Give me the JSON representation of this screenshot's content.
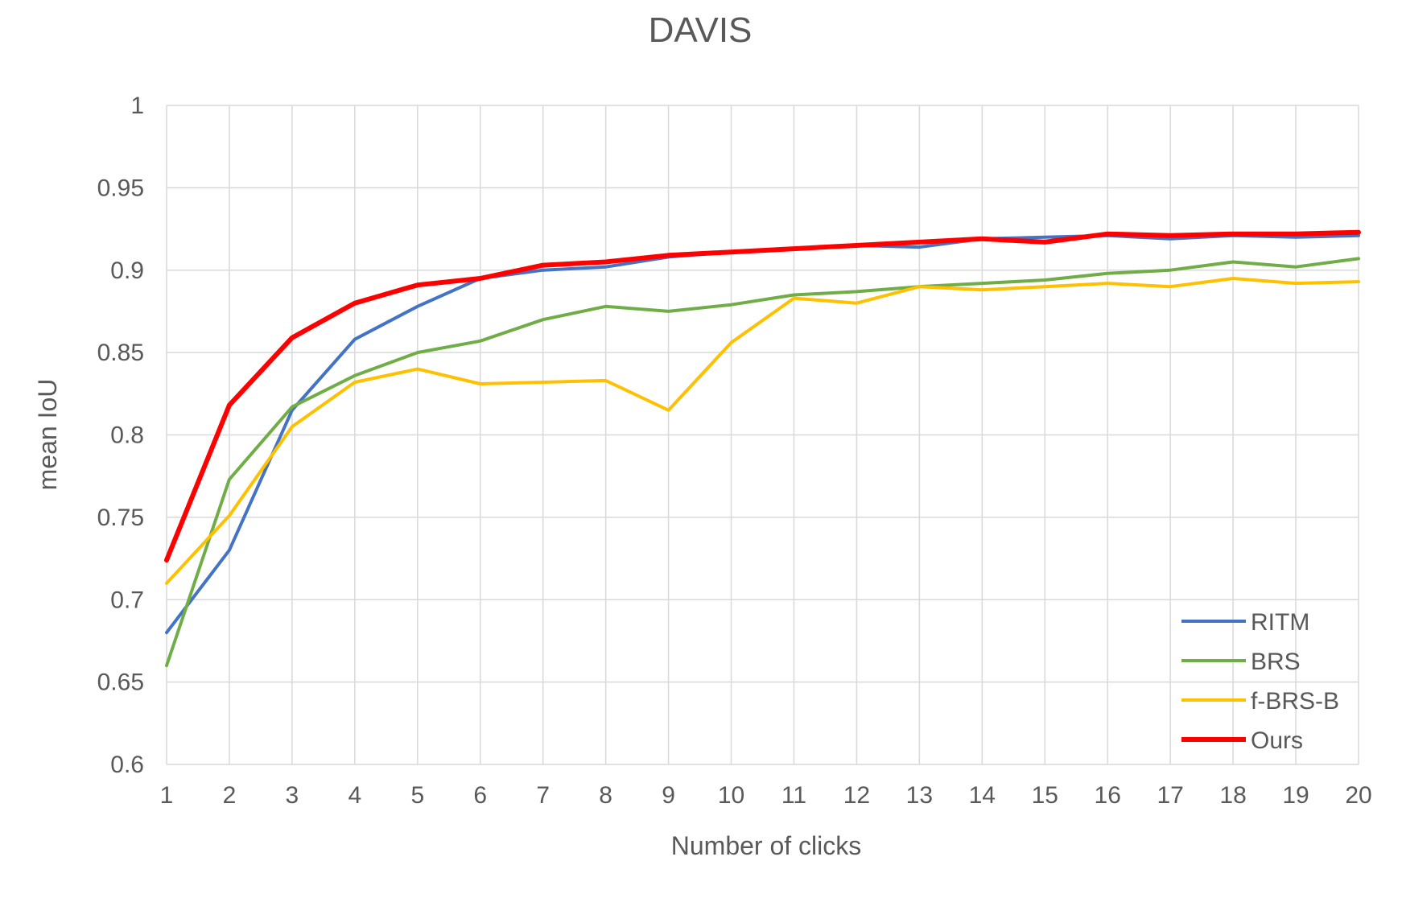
{
  "chart_data": {
    "type": "line",
    "title": "DAVIS",
    "xlabel": "Number of clicks",
    "ylabel": "mean IoU",
    "x": [
      1,
      2,
      3,
      4,
      5,
      6,
      7,
      8,
      9,
      10,
      11,
      12,
      13,
      14,
      15,
      16,
      17,
      18,
      19,
      20
    ],
    "ylim": [
      0.6,
      1
    ],
    "y_ticks": [
      0.6,
      0.65,
      0.7,
      0.75,
      0.8,
      0.85,
      0.9,
      0.95,
      1
    ],
    "y_tick_labels": [
      "0.6",
      "0.65",
      "0.7",
      "0.75",
      "0.8",
      "0.85",
      "0.9",
      "0.95",
      "1"
    ],
    "grid": true,
    "legend_position": "bottom-right",
    "series": [
      {
        "name": "RITM",
        "color": "#4472c4",
        "values": [
          0.68,
          0.73,
          0.815,
          0.858,
          0.878,
          0.895,
          0.9,
          0.902,
          0.908,
          0.911,
          0.913,
          0.915,
          0.914,
          0.919,
          0.92,
          0.921,
          0.919,
          0.921,
          0.92,
          0.921
        ]
      },
      {
        "name": "BRS",
        "color": "#70ad47",
        "values": [
          0.66,
          0.773,
          0.817,
          0.836,
          0.85,
          0.857,
          0.87,
          0.878,
          0.875,
          0.879,
          0.885,
          0.887,
          0.89,
          0.892,
          0.894,
          0.898,
          0.9,
          0.905,
          0.902,
          0.907
        ]
      },
      {
        "name": "f-BRS-B",
        "color": "#ffc000",
        "values": [
          0.71,
          0.751,
          0.805,
          0.832,
          0.84,
          0.831,
          0.832,
          0.833,
          0.815,
          0.856,
          0.883,
          0.88,
          0.89,
          0.888,
          0.89,
          0.892,
          0.89,
          0.895,
          0.892,
          0.893
        ]
      },
      {
        "name": "Ours",
        "color": "#ff0000",
        "values": [
          0.724,
          0.818,
          0.859,
          0.88,
          0.891,
          0.895,
          0.903,
          0.905,
          0.909,
          0.911,
          0.913,
          0.915,
          0.917,
          0.919,
          0.917,
          0.922,
          0.921,
          0.922,
          0.922,
          0.923
        ]
      }
    ]
  }
}
